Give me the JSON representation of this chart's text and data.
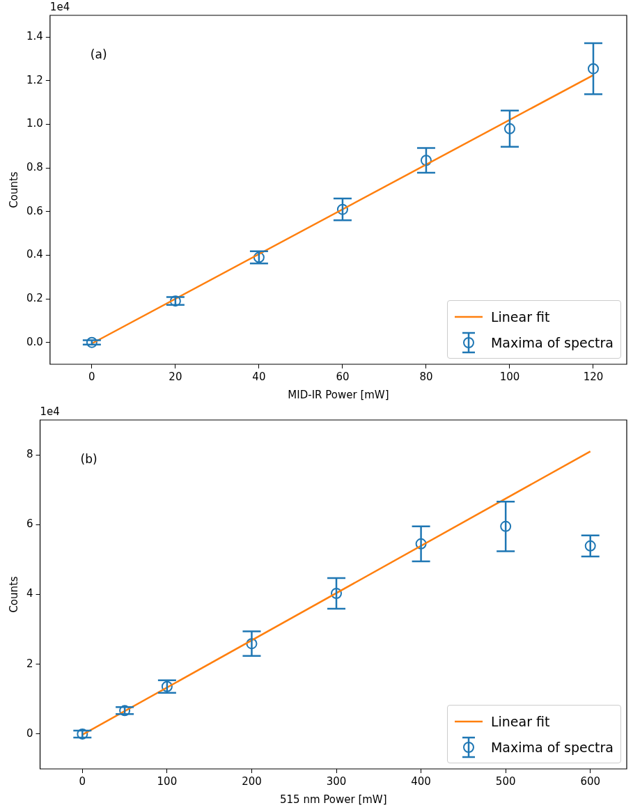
{
  "chart_data": [
    {
      "type": "scatter",
      "xlabel": "MID-IR Power [mW]",
      "ylabel": "Counts",
      "annotations": [
        "(a)",
        "1e4"
      ],
      "xlim": [
        -10,
        128
      ],
      "xticks": [
        0,
        20,
        40,
        60,
        80,
        100,
        120
      ],
      "ylim": [
        -0.1,
        1.5
      ],
      "yticks": [
        {
          "value": 0,
          "label": "0.0"
        },
        0.2,
        0.4,
        0.6,
        0.8,
        {
          "value": 1,
          "label": "1.0"
        },
        1.2,
        1.4
      ],
      "grid": false,
      "legend": "bottom right",
      "series": [
        {
          "name": "Linear fit",
          "type": "line",
          "x": [
            0,
            120
          ],
          "values": [
            -0.005,
            1.226
          ],
          "color": "#ff7f0e"
        },
        {
          "name": "Maxima of spectra",
          "type": "scatter",
          "marker": "circle",
          "x": [
            0,
            20,
            40,
            60,
            80,
            100,
            120
          ],
          "values": [
            0,
            0.19,
            0.39,
            0.61,
            0.835,
            0.98,
            1.255
          ],
          "errors": [
            0.01,
            0.018,
            0.028,
            0.05,
            0.057,
            0.083,
            0.117
          ],
          "color": "#1f77b4"
        }
      ]
    },
    {
      "type": "scatter",
      "xlabel": "515 nm Power [mW]",
      "ylabel": "Counts",
      "annotations": [
        "(b)",
        "1e4"
      ],
      "xlim": [
        -50,
        643
      ],
      "xticks": [
        0,
        100,
        200,
        300,
        400,
        500,
        600
      ],
      "ylim": [
        -1,
        9
      ],
      "yticks": [
        0,
        2,
        4,
        6,
        8
      ],
      "grid": false,
      "legend": "bottom right",
      "series": [
        {
          "name": "Linear fit",
          "type": "line",
          "x": [
            0,
            600
          ],
          "values": [
            -0.02,
            8.1
          ],
          "color": "#ff7f0e"
        },
        {
          "name": "Maxima of spectra",
          "type": "scatter",
          "marker": "circle",
          "x": [
            0,
            50,
            100,
            200,
            300,
            400,
            500,
            600
          ],
          "values": [
            0,
            0.67,
            1.36,
            2.59,
            4.03,
            5.45,
            5.95,
            5.39
          ],
          "errors": [
            0.1,
            0.1,
            0.18,
            0.35,
            0.44,
            0.5,
            0.71,
            0.3
          ],
          "color": "#1f77b4"
        }
      ]
    }
  ]
}
